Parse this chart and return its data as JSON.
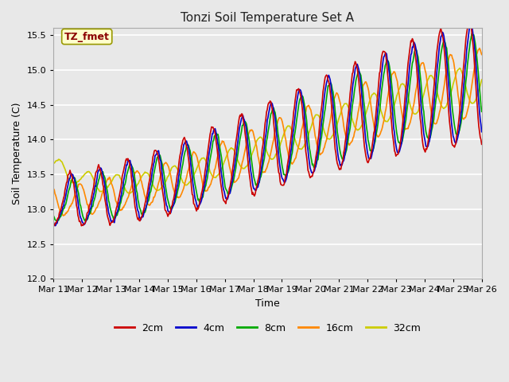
{
  "title": "Tonzi Soil Temperature Set A",
  "xlabel": "Time",
  "ylabel": "Soil Temperature (C)",
  "ylim": [
    12.0,
    15.6
  ],
  "annotation": "TZ_fmet",
  "legend_labels": [
    "2cm",
    "4cm",
    "8cm",
    "16cm",
    "32cm"
  ],
  "line_colors": [
    "#cc0000",
    "#0000cc",
    "#00aa00",
    "#ff8800",
    "#cccc00"
  ],
  "xtick_labels": [
    "Mar 11",
    "Mar 12",
    "Mar 13",
    "Mar 14",
    "Mar 15",
    "Mar 16",
    "Mar 17",
    "Mar 18",
    "Mar 19",
    "Mar 20",
    "Mar 21",
    "Mar 22",
    "Mar 23",
    "Mar 24",
    "Mar 25",
    "Mar 26"
  ],
  "linewidth": 1.2,
  "n_points": 600,
  "n_days": 15
}
